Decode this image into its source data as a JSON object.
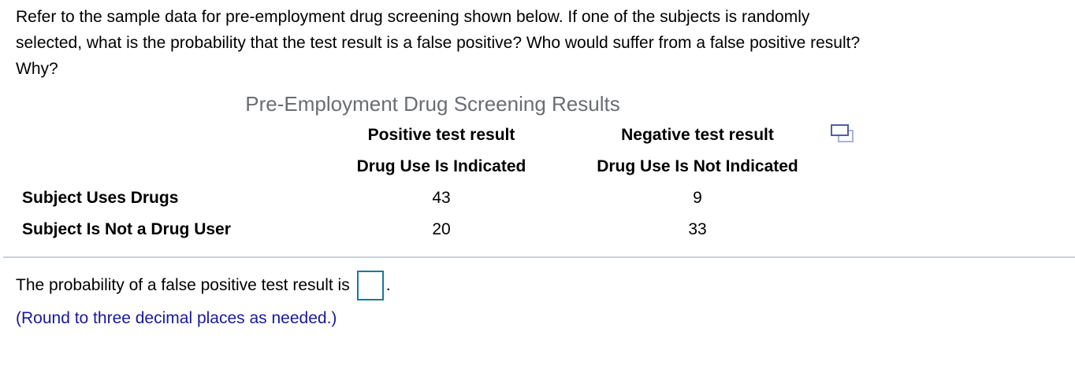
{
  "question": {
    "lines": [
      "Refer to the sample data for pre-employment drug screening shown below. If one of the subjects is randomly",
      "selected, what is the probability that the test result is a false positive? Who would suffer from a false positive result?",
      "Why?"
    ]
  },
  "table": {
    "title": "Pre-Employment Drug Screening Results",
    "columns": [
      {
        "line1": "Positive test result",
        "line2": "Drug Use Is Indicated"
      },
      {
        "line1": "Negative test result",
        "line2": "Drug Use Is Not Indicated"
      }
    ],
    "rows": [
      {
        "label": "Subject Uses Drugs",
        "values": [
          "43",
          "9"
        ]
      },
      {
        "label": "Subject Is Not a Drug User",
        "values": [
          "20",
          "33"
        ]
      }
    ],
    "popup_icon": "enlarge-table-icon"
  },
  "answer": {
    "prompt": "The probability of a false positive test result is",
    "input_value": "",
    "suffix": ".",
    "hint": "(Round to three decimal places as needed.)"
  },
  "colors": {
    "title_gray": "#6a6d72",
    "hint_blue": "#19199b",
    "input_border_teal": "#17799d",
    "divider_gray": "#ccd0d4",
    "icon_front_blue": "#4f5f9f",
    "icon_back_blue": "#a9b2d8"
  }
}
